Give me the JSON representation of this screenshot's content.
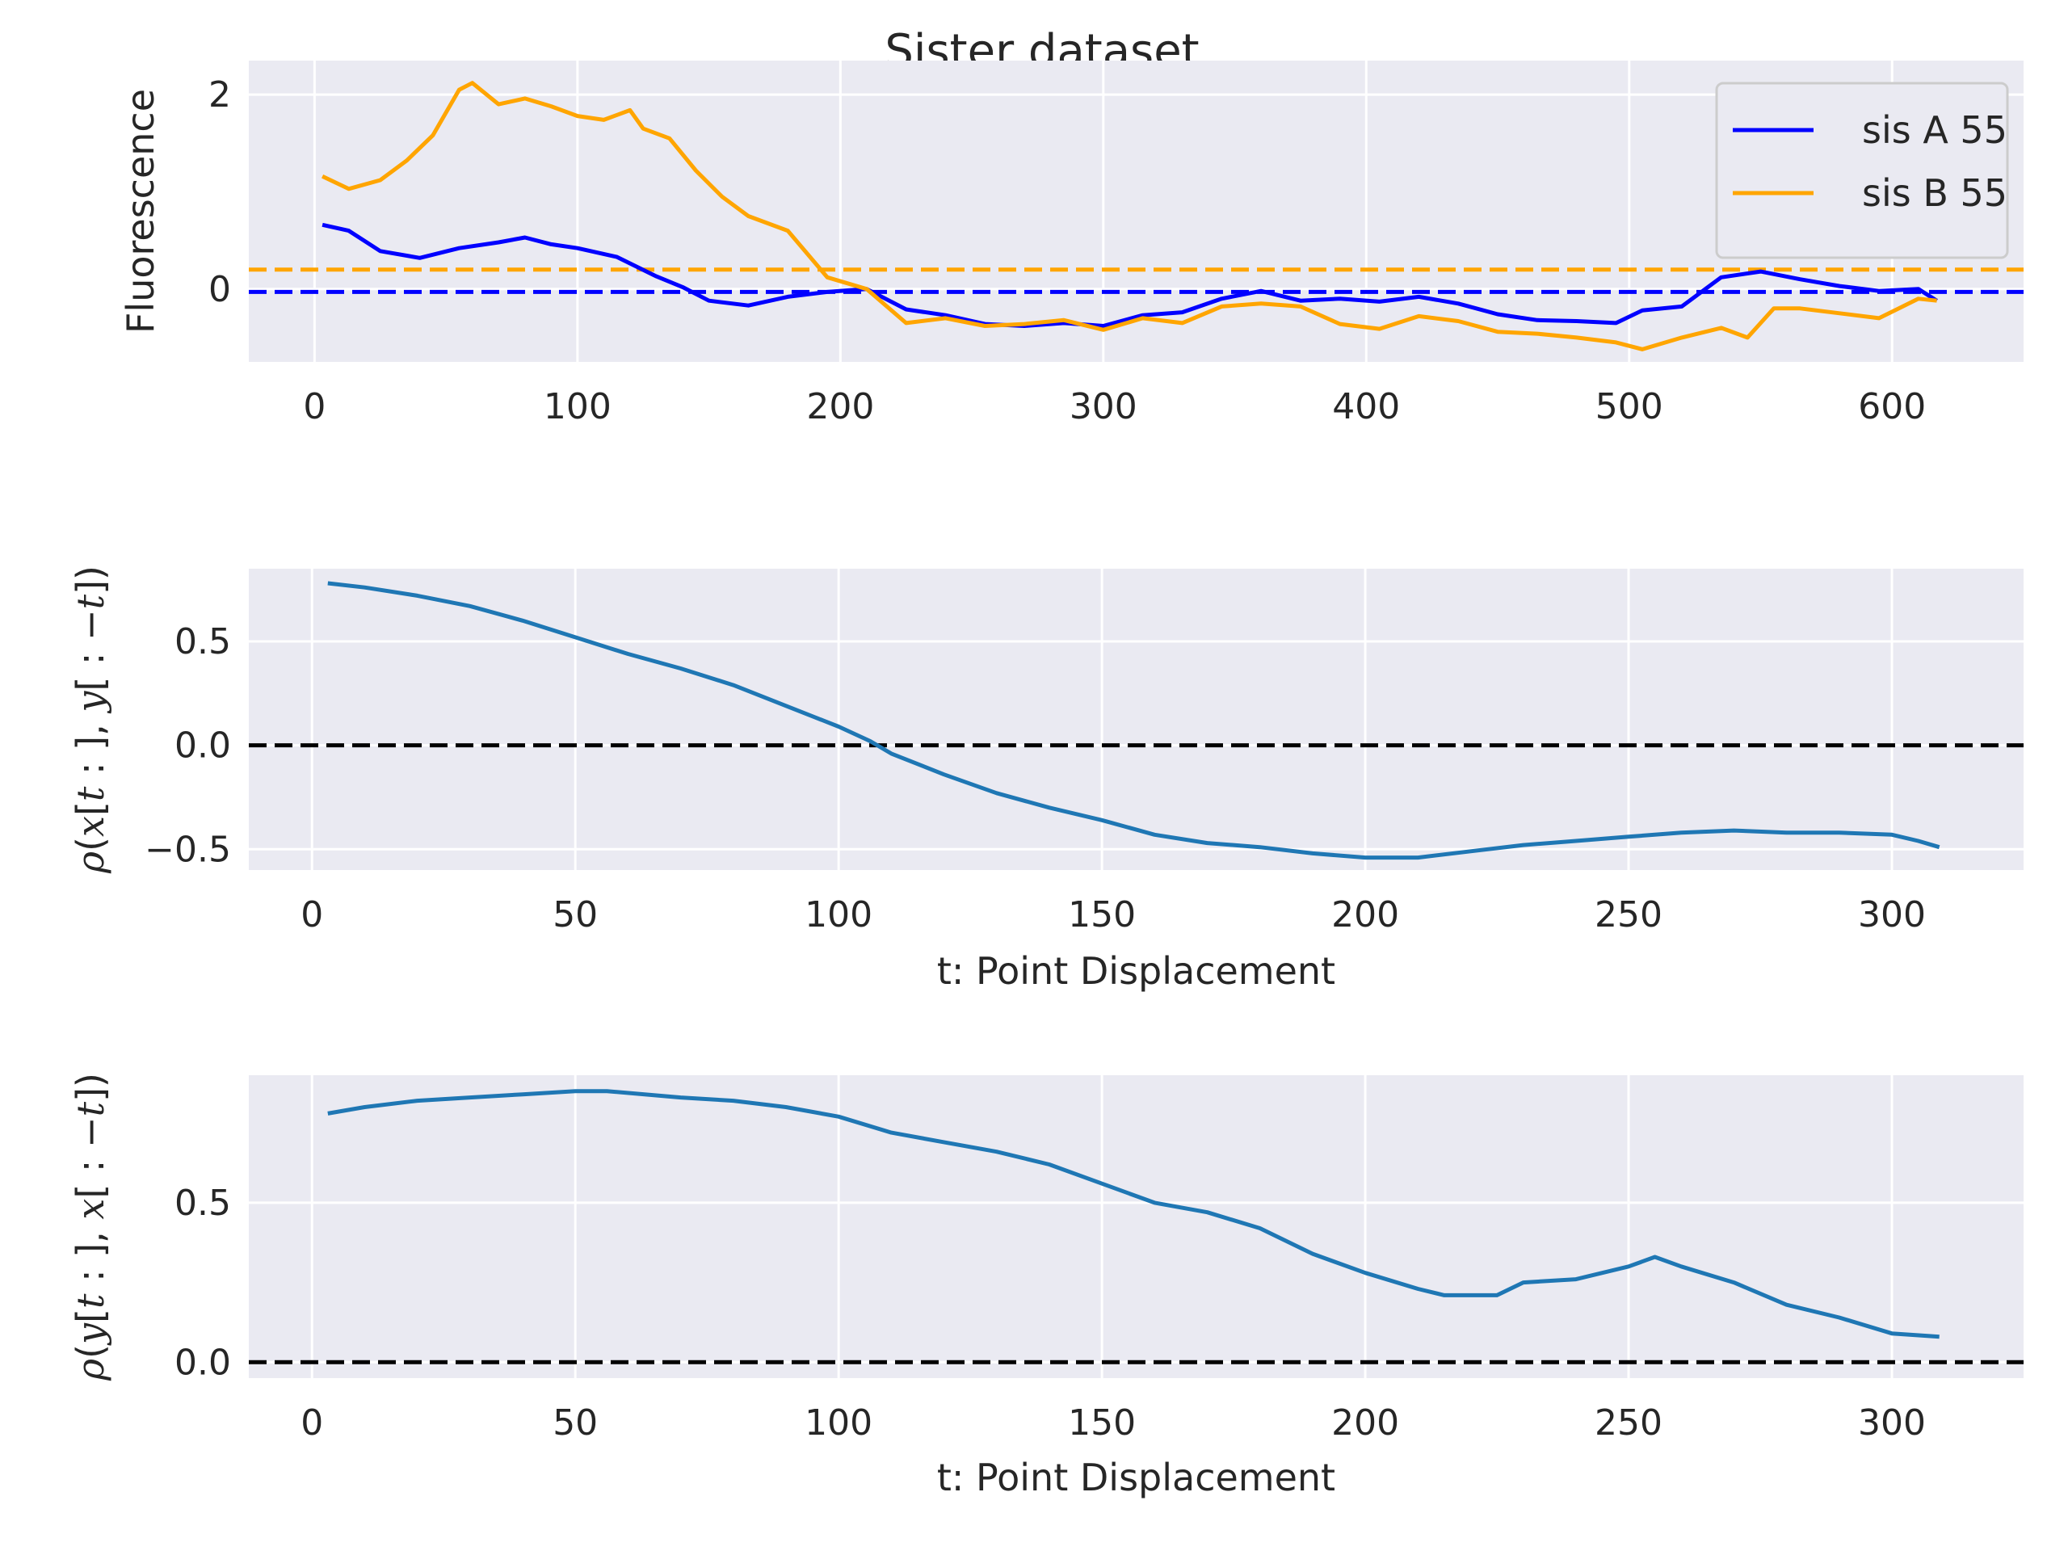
{
  "figure": {
    "title": "Sister dataset"
  },
  "chart_data": [
    {
      "type": "line",
      "title": "Sister dataset",
      "xlabel": "",
      "ylabel": "Fluorescence",
      "xlim": [
        -25,
        650
      ],
      "ylim": [
        -0.75,
        2.35
      ],
      "xticks": [
        0,
        100,
        200,
        300,
        400,
        500,
        600
      ],
      "yticks": [
        0,
        2
      ],
      "grid": true,
      "legend": "top-right",
      "series": [
        {
          "name": "sis A 55",
          "color": "#0000ff",
          "x": [
            3,
            13,
            25,
            40,
            55,
            70,
            80,
            90,
            100,
            115,
            130,
            140,
            150,
            165,
            180,
            195,
            210,
            225,
            240,
            255,
            270,
            285,
            300,
            315,
            330,
            345,
            360,
            375,
            390,
            405,
            420,
            435,
            450,
            465,
            480,
            495,
            505,
            520,
            535,
            550,
            565,
            580,
            595,
            610,
            617
          ],
          "y": [
            0.66,
            0.6,
            0.39,
            0.32,
            0.42,
            0.48,
            0.53,
            0.46,
            0.42,
            0.33,
            0.13,
            0.02,
            -0.12,
            -0.17,
            -0.08,
            -0.03,
            0.0,
            -0.21,
            -0.27,
            -0.36,
            -0.38,
            -0.35,
            -0.38,
            -0.27,
            -0.24,
            -0.1,
            -0.02,
            -0.12,
            -0.1,
            -0.13,
            -0.08,
            -0.15,
            -0.26,
            -0.32,
            -0.33,
            -0.35,
            -0.22,
            -0.18,
            0.12,
            0.18,
            0.1,
            0.03,
            -0.02,
            0.0,
            -0.12
          ]
        },
        {
          "name": "sis B 55",
          "color": "#ffa500",
          "x": [
            3,
            13,
            25,
            35,
            45,
            55,
            60,
            70,
            80,
            90,
            100,
            110,
            120,
            125,
            135,
            145,
            155,
            165,
            180,
            195,
            210,
            225,
            240,
            255,
            270,
            285,
            300,
            315,
            330,
            345,
            360,
            375,
            390,
            405,
            420,
            435,
            450,
            465,
            480,
            495,
            505,
            520,
            535,
            545,
            555,
            565,
            580,
            595,
            610,
            617
          ],
          "y": [
            1.16,
            1.03,
            1.12,
            1.32,
            1.58,
            2.05,
            2.12,
            1.9,
            1.96,
            1.88,
            1.78,
            1.74,
            1.84,
            1.65,
            1.55,
            1.22,
            0.95,
            0.75,
            0.6,
            0.12,
            0.0,
            -0.35,
            -0.3,
            -0.38,
            -0.36,
            -0.32,
            -0.42,
            -0.3,
            -0.35,
            -0.18,
            -0.15,
            -0.18,
            -0.36,
            -0.41,
            -0.28,
            -0.33,
            -0.44,
            -0.46,
            -0.5,
            -0.55,
            -0.62,
            -0.5,
            -0.4,
            -0.5,
            -0.2,
            -0.2,
            -0.25,
            -0.3,
            -0.1,
            -0.12
          ]
        }
      ],
      "reference_lines": [
        {
          "y": -0.03,
          "color": "#0000ff",
          "style": "dashed"
        },
        {
          "y": 0.2,
          "color": "#ffa500",
          "style": "dashed"
        }
      ]
    },
    {
      "type": "line",
      "xlabel": "t: Point Displacement",
      "ylabel": "ρ(x[t:],y[:−t])",
      "ylabel_parts": [
        "ρ",
        "(",
        "x",
        "[",
        "t",
        " : ], ",
        "y",
        "[ : −",
        "t",
        "])"
      ],
      "xlim": [
        -12,
        325
      ],
      "ylim": [
        -0.6,
        0.85
      ],
      "xticks": [
        0,
        50,
        100,
        150,
        200,
        250,
        300
      ],
      "yticks": [
        -0.5,
        0.0,
        0.5
      ],
      "ytick_labels": [
        "−0.5",
        "0.0",
        "0.5"
      ],
      "grid": true,
      "series": [
        {
          "color": "#1f77b4",
          "x": [
            3,
            10,
            20,
            30,
            40,
            50,
            60,
            70,
            80,
            90,
            100,
            106,
            110,
            120,
            130,
            140,
            150,
            160,
            170,
            180,
            190,
            200,
            210,
            220,
            230,
            240,
            250,
            260,
            270,
            280,
            290,
            300,
            305,
            309
          ],
          "y": [
            0.78,
            0.76,
            0.72,
            0.67,
            0.6,
            0.52,
            0.44,
            0.37,
            0.29,
            0.19,
            0.09,
            0.02,
            -0.04,
            -0.14,
            -0.23,
            -0.3,
            -0.36,
            -0.43,
            -0.47,
            -0.49,
            -0.52,
            -0.54,
            -0.54,
            -0.51,
            -0.48,
            -0.46,
            -0.44,
            -0.42,
            -0.41,
            -0.42,
            -0.42,
            -0.43,
            -0.46,
            -0.49
          ]
        }
      ],
      "reference_lines": [
        {
          "y": 0,
          "color": "#000000",
          "style": "dashed"
        }
      ]
    },
    {
      "type": "line",
      "xlabel": "t: Point Displacement",
      "ylabel": "ρ(y[t:],x[:−t])",
      "ylabel_parts": [
        "ρ",
        "(",
        "y",
        "[",
        "t",
        " : ], ",
        "x",
        "[ : −",
        "t",
        "])"
      ],
      "xlim": [
        -12,
        325
      ],
      "ylim": [
        -0.05,
        0.9
      ],
      "xticks": [
        0,
        50,
        100,
        150,
        200,
        250,
        300
      ],
      "yticks": [
        0.0,
        0.5
      ],
      "ytick_labels": [
        "0.0",
        "0.5"
      ],
      "grid": true,
      "series": [
        {
          "color": "#1f77b4",
          "x": [
            3,
            10,
            20,
            30,
            40,
            50,
            56,
            70,
            80,
            90,
            100,
            110,
            120,
            130,
            140,
            150,
            160,
            170,
            180,
            190,
            200,
            210,
            215,
            220,
            225,
            230,
            240,
            250,
            255,
            260,
            270,
            280,
            290,
            300,
            309
          ],
          "y": [
            0.78,
            0.8,
            0.82,
            0.83,
            0.84,
            0.85,
            0.85,
            0.83,
            0.82,
            0.8,
            0.77,
            0.72,
            0.69,
            0.66,
            0.62,
            0.56,
            0.5,
            0.47,
            0.42,
            0.34,
            0.28,
            0.23,
            0.21,
            0.21,
            0.21,
            0.25,
            0.26,
            0.3,
            0.33,
            0.3,
            0.25,
            0.18,
            0.14,
            0.09,
            0.08
          ]
        }
      ],
      "reference_lines": [
        {
          "y": 0,
          "color": "#000000",
          "style": "dashed"
        }
      ]
    }
  ]
}
